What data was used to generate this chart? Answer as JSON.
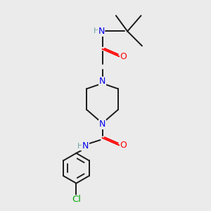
{
  "bg_color": "#ebebeb",
  "atom_colors": {
    "N": "#0000ee",
    "O": "#ff0000",
    "Cl": "#00aa00",
    "H": "#6fa3a3"
  },
  "bond_color": "#1a1a1a",
  "bond_width": 1.4,
  "figsize": [
    3.0,
    3.0
  ],
  "dpi": 100,
  "font_size": 8.5
}
